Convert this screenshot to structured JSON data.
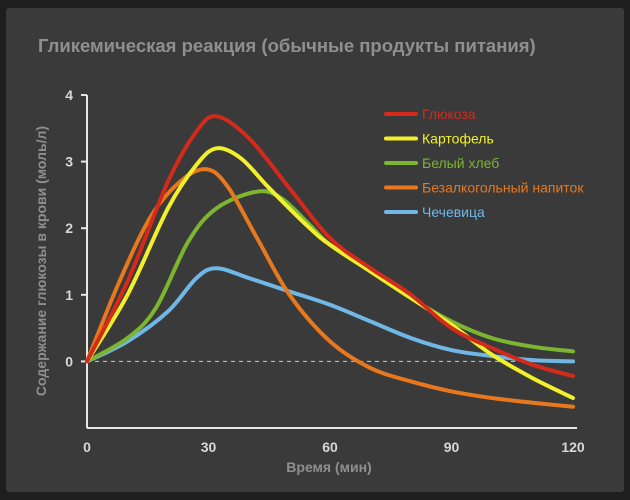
{
  "chart_data": {
    "type": "line",
    "title": "Гликемическая реакция (обычные продукты питания)",
    "xlabel": "Время (мин)",
    "ylabel": "Содержание глюкозы в крови (моль/л)",
    "xlim": [
      0,
      120
    ],
    "ylim": [
      -1,
      4
    ],
    "x_ticks": [
      "0",
      "30",
      "60",
      "90",
      "120"
    ],
    "y_ticks": [
      "0",
      "1",
      "2",
      "3",
      "4"
    ],
    "baseline": 0,
    "grid": false,
    "legend_position": "top-right",
    "series": [
      {
        "name": "Глюкоза",
        "color": "#d42a1c",
        "points": [
          [
            0,
            0
          ],
          [
            10,
            1.2
          ],
          [
            20,
            2.7
          ],
          [
            27,
            3.45
          ],
          [
            32,
            3.68
          ],
          [
            40,
            3.35
          ],
          [
            50,
            2.6
          ],
          [
            60,
            1.85
          ],
          [
            70,
            1.4
          ],
          [
            80,
            1.0
          ],
          [
            90,
            0.5
          ],
          [
            100,
            0.2
          ],
          [
            110,
            -0.05
          ],
          [
            120,
            -0.22
          ]
        ]
      },
      {
        "name": "Картофель",
        "color": "#f2f02a",
        "points": [
          [
            0,
            0
          ],
          [
            10,
            1.0
          ],
          [
            20,
            2.3
          ],
          [
            27,
            2.95
          ],
          [
            32,
            3.2
          ],
          [
            38,
            3.05
          ],
          [
            45,
            2.6
          ],
          [
            55,
            2.0
          ],
          [
            60,
            1.75
          ],
          [
            70,
            1.35
          ],
          [
            80,
            0.95
          ],
          [
            90,
            0.55
          ],
          [
            100,
            0.1
          ],
          [
            110,
            -0.25
          ],
          [
            120,
            -0.55
          ]
        ]
      },
      {
        "name": "Белый хлеб",
        "color": "#7db530",
        "points": [
          [
            0,
            0
          ],
          [
            10,
            0.35
          ],
          [
            17,
            0.8
          ],
          [
            25,
            1.8
          ],
          [
            32,
            2.3
          ],
          [
            42,
            2.55
          ],
          [
            48,
            2.45
          ],
          [
            55,
            2.05
          ],
          [
            60,
            1.75
          ],
          [
            70,
            1.35
          ],
          [
            80,
            0.95
          ],
          [
            90,
            0.6
          ],
          [
            100,
            0.35
          ],
          [
            110,
            0.22
          ],
          [
            120,
            0.15
          ]
        ]
      },
      {
        "name": "Безалкогольный напиток",
        "color": "#e8781e",
        "points": [
          [
            0,
            0
          ],
          [
            8,
            1.2
          ],
          [
            16,
            2.2
          ],
          [
            24,
            2.75
          ],
          [
            30,
            2.88
          ],
          [
            35,
            2.6
          ],
          [
            42,
            1.85
          ],
          [
            50,
            1.0
          ],
          [
            60,
            0.3
          ],
          [
            70,
            -0.1
          ],
          [
            80,
            -0.3
          ],
          [
            90,
            -0.45
          ],
          [
            100,
            -0.55
          ],
          [
            110,
            -0.62
          ],
          [
            120,
            -0.68
          ]
        ]
      },
      {
        "name": "Чечевица",
        "color": "#6fb8e6",
        "points": [
          [
            0,
            0
          ],
          [
            10,
            0.3
          ],
          [
            20,
            0.75
          ],
          [
            27,
            1.25
          ],
          [
            32,
            1.4
          ],
          [
            40,
            1.25
          ],
          [
            50,
            1.05
          ],
          [
            60,
            0.85
          ],
          [
            70,
            0.6
          ],
          [
            80,
            0.35
          ],
          [
            90,
            0.17
          ],
          [
            100,
            0.08
          ],
          [
            110,
            0.02
          ],
          [
            120,
            0.0
          ]
        ]
      }
    ]
  }
}
